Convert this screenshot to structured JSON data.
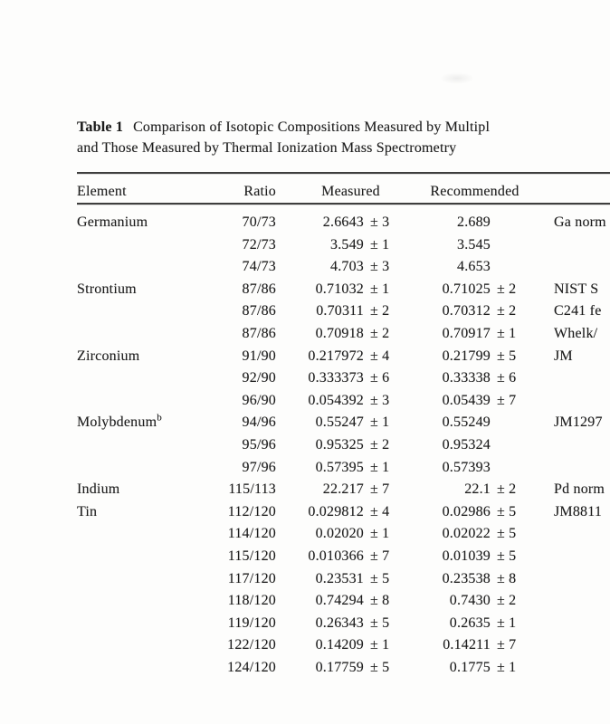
{
  "document": {
    "table_label": "Table 1",
    "title_line1": "Comparison of Isotopic Compositions Measured by Multipl",
    "title_line2": "and Those Measured by Thermal Ionization Mass Spectrometry"
  },
  "table": {
    "columns": [
      "Element",
      "Ratio",
      "Measured",
      "Recommended"
    ],
    "rows": [
      {
        "element": "Germanium",
        "element_sup": "",
        "ratio": "70/73",
        "measured": "2.6643",
        "measured_pm": "± 3",
        "recommended": "2.689",
        "recommended_pm": "",
        "note": "Ga norm"
      },
      {
        "element": "",
        "element_sup": "",
        "ratio": "72/73",
        "measured": "3.549",
        "measured_pm": "± 1",
        "recommended": "3.545",
        "recommended_pm": "",
        "note": ""
      },
      {
        "element": "",
        "element_sup": "",
        "ratio": "74/73",
        "measured": "4.703",
        "measured_pm": "± 3",
        "recommended": "4.653",
        "recommended_pm": "",
        "note": ""
      },
      {
        "element": "Strontium",
        "element_sup": "",
        "ratio": "87/86",
        "measured": "0.71032",
        "measured_pm": "± 1",
        "recommended": "0.71025",
        "recommended_pm": "± 2",
        "note": "NIST S"
      },
      {
        "element": "",
        "element_sup": "",
        "ratio": "87/86",
        "measured": "0.70311",
        "measured_pm": "± 2",
        "recommended": "0.70312",
        "recommended_pm": "± 2",
        "note": "C241 fe"
      },
      {
        "element": "",
        "element_sup": "",
        "ratio": "87/86",
        "measured": "0.70918",
        "measured_pm": "± 2",
        "recommended": "0.70917",
        "recommended_pm": "± 1",
        "note": "Whelk/"
      },
      {
        "element": "Zirconium",
        "element_sup": "",
        "ratio": "91/90",
        "measured": "0.217972",
        "measured_pm": "± 4",
        "recommended": "0.21799",
        "recommended_pm": "± 5",
        "note": "JM"
      },
      {
        "element": "",
        "element_sup": "",
        "ratio": "92/90",
        "measured": "0.333373",
        "measured_pm": "± 6",
        "recommended": "0.33338",
        "recommended_pm": "± 6",
        "note": ""
      },
      {
        "element": "",
        "element_sup": "",
        "ratio": "96/90",
        "measured": "0.054392",
        "measured_pm": "± 3",
        "recommended": "0.05439",
        "recommended_pm": "± 7",
        "note": ""
      },
      {
        "element": "Molybdenum",
        "element_sup": "b",
        "ratio": "94/96",
        "measured": "0.55247",
        "measured_pm": "± 1",
        "recommended": "0.55249",
        "recommended_pm": "",
        "note": "JM1297"
      },
      {
        "element": "",
        "element_sup": "",
        "ratio": "95/96",
        "measured": "0.95325",
        "measured_pm": "± 2",
        "recommended": "0.95324",
        "recommended_pm": "",
        "note": ""
      },
      {
        "element": "",
        "element_sup": "",
        "ratio": "97/96",
        "measured": "0.57395",
        "measured_pm": "± 1",
        "recommended": "0.57393",
        "recommended_pm": "",
        "note": ""
      },
      {
        "element": "Indium",
        "element_sup": "",
        "ratio": "115/113",
        "measured": "22.217",
        "measured_pm": "± 7",
        "recommended": "22.1",
        "recommended_pm": "± 2",
        "note": "Pd norm"
      },
      {
        "element": "Tin",
        "element_sup": "",
        "ratio": "112/120",
        "measured": "0.029812",
        "measured_pm": "± 4",
        "recommended": "0.02986",
        "recommended_pm": "± 5",
        "note": "JM8811"
      },
      {
        "element": "",
        "element_sup": "",
        "ratio": "114/120",
        "measured": "0.02020",
        "measured_pm": "± 1",
        "recommended": "0.02022",
        "recommended_pm": "± 5",
        "note": ""
      },
      {
        "element": "",
        "element_sup": "",
        "ratio": "115/120",
        "measured": "0.010366",
        "measured_pm": "± 7",
        "recommended": "0.01039",
        "recommended_pm": "± 5",
        "note": ""
      },
      {
        "element": "",
        "element_sup": "",
        "ratio": "117/120",
        "measured": "0.23531",
        "measured_pm": "± 5",
        "recommended": "0.23538",
        "recommended_pm": "± 8",
        "note": ""
      },
      {
        "element": "",
        "element_sup": "",
        "ratio": "118/120",
        "measured": "0.74294",
        "measured_pm": "± 8",
        "recommended": "0.7430",
        "recommended_pm": "± 2",
        "note": ""
      },
      {
        "element": "",
        "element_sup": "",
        "ratio": "119/120",
        "measured": "0.26343",
        "measured_pm": "± 5",
        "recommended": "0.2635",
        "recommended_pm": "± 1",
        "note": ""
      },
      {
        "element": "",
        "element_sup": "",
        "ratio": "122/120",
        "measured": "0.14209",
        "measured_pm": "± 1",
        "recommended": "0.14211",
        "recommended_pm": "± 7",
        "note": ""
      },
      {
        "element": "",
        "element_sup": "",
        "ratio": "124/120",
        "measured": "0.17759",
        "measured_pm": "± 5",
        "recommended": "0.1775",
        "recommended_pm": "± 1",
        "note": ""
      }
    ]
  },
  "colors": {
    "text": "#1c1c1c",
    "rule": "#3e3e3e",
    "background": "#fdfdfc"
  }
}
